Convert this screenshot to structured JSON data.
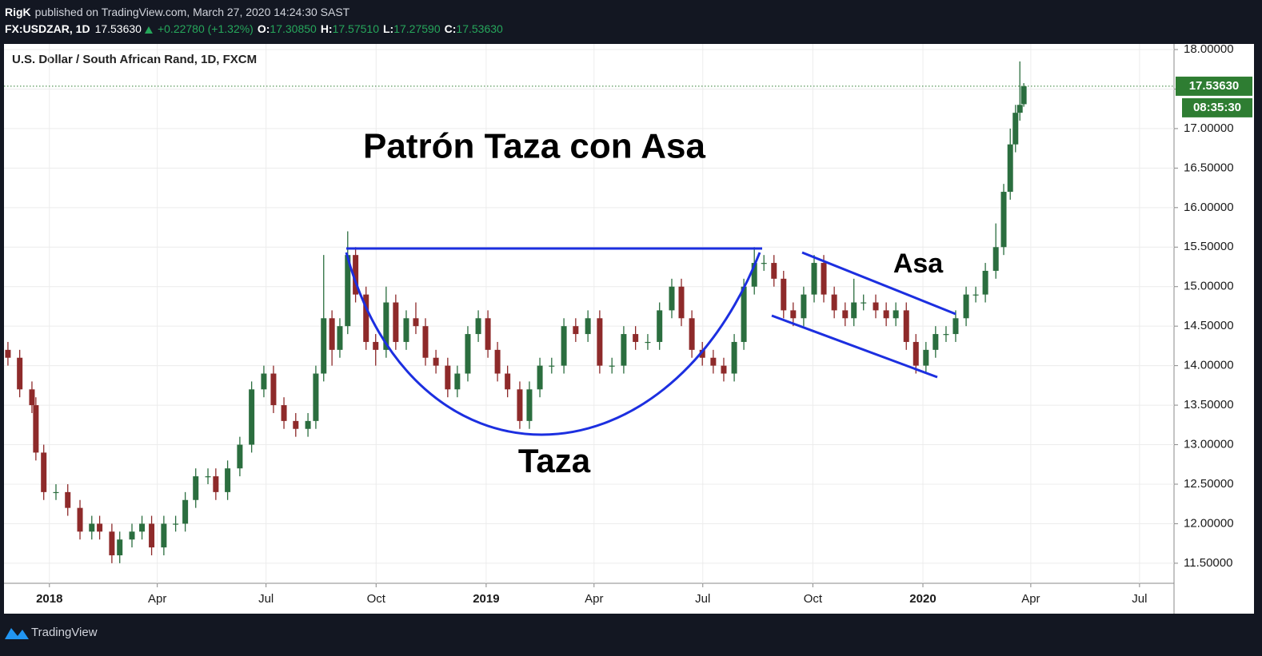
{
  "header": {
    "author": "RigK",
    "published": "published on TradingView.com, March 27, 2020 14:24:30 SAST",
    "symbol": "FX:USDZAR, 1D",
    "last": "17.53630",
    "change": "+0.22780 (+1.32%)",
    "o_label": "O:",
    "open": "17.30850",
    "h_label": "H:",
    "high": "17.57510",
    "l_label": "L:",
    "low": "17.27590",
    "c_label": "C:",
    "close": "17.53630",
    "countdown": "08:35:30"
  },
  "footer": {
    "brand": "TradingView"
  },
  "chart_data": {
    "type": "candlestick",
    "title": "U.S. Dollar / South African Rand, 1D, FXCM",
    "annotations": [
      "Patrón Taza con Asa",
      "Taza",
      "Asa"
    ],
    "up_color": "#2b6e3f",
    "down_color": "#8e2a2a",
    "drawing_color": "#1c2fe0",
    "last_price_color": "#2e7d32",
    "grid": true,
    "x": [
      2017.905,
      2017.932,
      2017.96,
      2017.969,
      2017.987,
      2018.015,
      2018.042,
      2018.07,
      2018.097,
      2018.115,
      2018.143,
      2018.161,
      2018.189,
      2018.212,
      2018.234,
      2018.262,
      2018.289,
      2018.311,
      2018.335,
      2018.363,
      2018.381,
      2018.408,
      2018.436,
      2018.463,
      2018.491,
      2018.513,
      2018.537,
      2018.564,
      2018.592,
      2018.61,
      2018.628,
      2018.647,
      2018.665,
      2018.683,
      2018.701,
      2018.725,
      2018.747,
      2018.771,
      2018.793,
      2018.817,
      2018.839,
      2018.861,
      2018.885,
      2018.912,
      2018.934,
      2018.958,
      2018.982,
      2019.004,
      2019.026,
      2019.049,
      2019.077,
      2019.099,
      2019.123,
      2019.15,
      2019.178,
      2019.205,
      2019.233,
      2019.26,
      2019.288,
      2019.315,
      2019.342,
      2019.37,
      2019.397,
      2019.425,
      2019.447,
      2019.471,
      2019.495,
      2019.52,
      2019.544,
      2019.568,
      2019.59,
      2019.614,
      2019.636,
      2019.659,
      2019.681,
      2019.703,
      2019.727,
      2019.751,
      2019.773,
      2019.797,
      2019.822,
      2019.842,
      2019.864,
      2019.892,
      2019.916,
      2019.938,
      2019.962,
      2019.984,
      2020.007,
      2020.029,
      2020.053,
      2020.075,
      2020.099,
      2020.121,
      2020.143,
      2020.167,
      2020.185,
      2020.2,
      2020.212,
      2020.222,
      2020.231
    ],
    "open": [
      14.2,
      14.1,
      13.7,
      13.5,
      12.9,
      12.4,
      12.4,
      12.2,
      11.9,
      12.0,
      11.9,
      11.6,
      11.8,
      11.9,
      12.0,
      11.7,
      12.0,
      12.0,
      12.3,
      12.6,
      12.6,
      12.4,
      12.7,
      13.0,
      13.7,
      13.9,
      13.5,
      13.3,
      13.2,
      13.3,
      13.9,
      14.6,
      14.2,
      14.5,
      15.4,
      14.9,
      14.3,
      14.2,
      14.8,
      14.3,
      14.6,
      14.5,
      14.1,
      14.0,
      13.7,
      13.9,
      14.4,
      14.6,
      14.2,
      13.9,
      13.7,
      13.3,
      13.7,
      14.0,
      14.0,
      14.5,
      14.4,
      14.6,
      14.0,
      14.0,
      14.4,
      14.3,
      14.3,
      14.7,
      15.0,
      14.6,
      14.2,
      14.1,
      14.0,
      13.9,
      14.3,
      15.0,
      15.3,
      15.3,
      15.1,
      14.7,
      14.6,
      14.9,
      15.3,
      14.9,
      14.7,
      14.6,
      14.8,
      14.8,
      14.7,
      14.6,
      14.7,
      14.3,
      14.0,
      14.2,
      14.4,
      14.4,
      14.6,
      14.9,
      14.9,
      15.2,
      15.5,
      16.2,
      16.8,
      17.2,
      17.3085
    ],
    "high": [
      14.3,
      14.2,
      13.8,
      13.6,
      13.0,
      12.5,
      12.5,
      12.3,
      12.1,
      12.1,
      12.0,
      11.9,
      12.0,
      12.1,
      12.1,
      12.1,
      12.1,
      12.4,
      12.7,
      12.7,
      12.7,
      12.8,
      13.1,
      13.8,
      14.0,
      14.0,
      13.6,
      13.4,
      13.4,
      14.0,
      15.4,
      14.7,
      14.6,
      15.7,
      15.5,
      15.0,
      14.4,
      15.0,
      14.9,
      14.7,
      14.8,
      14.6,
      14.2,
      14.1,
      14.0,
      14.5,
      14.7,
      14.7,
      14.3,
      14.0,
      13.8,
      13.8,
      14.1,
      14.1,
      14.6,
      14.6,
      14.7,
      14.7,
      14.1,
      14.5,
      14.5,
      14.4,
      14.8,
      15.1,
      15.1,
      14.7,
      14.3,
      14.2,
      14.1,
      14.4,
      15.1,
      15.5,
      15.4,
      15.4,
      15.2,
      14.8,
      15.0,
      15.4,
      15.4,
      15.0,
      14.8,
      15.1,
      14.9,
      14.9,
      14.8,
      14.8,
      14.8,
      14.4,
      14.3,
      14.5,
      14.5,
      14.7,
      15.0,
      15.0,
      15.3,
      15.8,
      16.3,
      17.0,
      17.3,
      17.85,
      17.5751
    ],
    "low": [
      14.0,
      13.6,
      13.4,
      12.8,
      12.3,
      12.3,
      12.1,
      11.8,
      11.8,
      11.8,
      11.5,
      11.5,
      11.7,
      11.8,
      11.6,
      11.6,
      11.9,
      11.9,
      12.2,
      12.5,
      12.3,
      12.3,
      12.6,
      12.9,
      13.6,
      13.4,
      13.2,
      13.1,
      13.1,
      13.2,
      13.8,
      14.0,
      14.1,
      14.4,
      14.8,
      14.2,
      14.0,
      14.1,
      14.2,
      14.2,
      14.4,
      14.0,
      13.9,
      13.6,
      13.6,
      13.8,
      14.3,
      14.1,
      13.8,
      13.6,
      13.2,
      13.2,
      13.6,
      13.9,
      13.9,
      14.3,
      14.3,
      13.9,
      13.9,
      13.9,
      14.2,
      14.2,
      14.2,
      14.6,
      14.5,
      14.1,
      14.0,
      13.9,
      13.8,
      13.8,
      14.2,
      14.9,
      15.2,
      15.0,
      14.6,
      14.5,
      14.5,
      14.8,
      14.8,
      14.6,
      14.5,
      14.5,
      14.7,
      14.6,
      14.5,
      14.5,
      14.2,
      13.9,
      13.9,
      14.1,
      14.3,
      14.3,
      14.5,
      14.8,
      14.8,
      15.1,
      15.4,
      16.1,
      16.7,
      17.1,
      17.2759
    ],
    "close": [
      14.1,
      13.7,
      13.5,
      12.9,
      12.4,
      12.4,
      12.2,
      11.9,
      12.0,
      11.9,
      11.6,
      11.8,
      11.9,
      12.0,
      11.7,
      12.0,
      12.0,
      12.3,
      12.6,
      12.6,
      12.4,
      12.7,
      13.0,
      13.7,
      13.9,
      13.5,
      13.3,
      13.2,
      13.3,
      13.9,
      14.6,
      14.2,
      14.5,
      15.4,
      14.9,
      14.3,
      14.2,
      14.8,
      14.3,
      14.6,
      14.5,
      14.1,
      14.0,
      13.7,
      13.9,
      14.4,
      14.6,
      14.2,
      13.9,
      13.7,
      13.3,
      13.7,
      14.0,
      14.0,
      14.5,
      14.4,
      14.6,
      14.0,
      14.0,
      14.4,
      14.3,
      14.3,
      14.7,
      15.0,
      14.6,
      14.2,
      14.1,
      14.0,
      13.9,
      14.3,
      15.0,
      15.3,
      15.3,
      15.1,
      14.7,
      14.6,
      14.9,
      15.3,
      14.9,
      14.7,
      14.6,
      14.8,
      14.8,
      14.7,
      14.6,
      14.7,
      14.3,
      14.0,
      14.2,
      14.4,
      14.4,
      14.6,
      14.9,
      14.9,
      15.2,
      15.5,
      16.2,
      16.8,
      17.2,
      17.3,
      17.5363
    ],
    "xlim": [
      2017.896,
      2020.575
    ],
    "xticks": [
      2018,
      {
        "value": 2018.247,
        "label": "Apr"
      },
      {
        "value": 2018.496,
        "label": "Jul"
      },
      {
        "value": 2018.748,
        "label": "Oct"
      },
      2019,
      {
        "value": 2019.247,
        "label": "Apr"
      },
      {
        "value": 2019.496,
        "label": "Jul"
      },
      {
        "value": 2019.748,
        "label": "Oct"
      },
      2020,
      {
        "value": 2020.247,
        "label": "Apr"
      },
      {
        "value": 2020.496,
        "label": "Jul"
      }
    ],
    "ylim": [
      11.246,
      18.071
    ],
    "yticks": [
      {
        "value": 11.5,
        "label": "11.50000"
      },
      {
        "value": 12,
        "label": "12.00000"
      },
      {
        "value": 12.5,
        "label": "12.50000"
      },
      {
        "value": 13,
        "label": "13.00000"
      },
      {
        "value": 13.5,
        "label": "13.50000"
      },
      {
        "value": 14,
        "label": "14.00000"
      },
      {
        "value": 14.5,
        "label": "14.50000"
      },
      {
        "value": 15,
        "label": "15.00000"
      },
      {
        "value": 15.5,
        "label": "15.50000"
      },
      {
        "value": 16,
        "label": "16.00000"
      },
      {
        "value": 16.5,
        "label": "16.50000"
      },
      {
        "value": 17,
        "label": "17.00000"
      },
      {
        "value": 17.5,
        "label": "17.50000"
      },
      {
        "value": 18,
        "label": "18.00000"
      }
    ]
  }
}
